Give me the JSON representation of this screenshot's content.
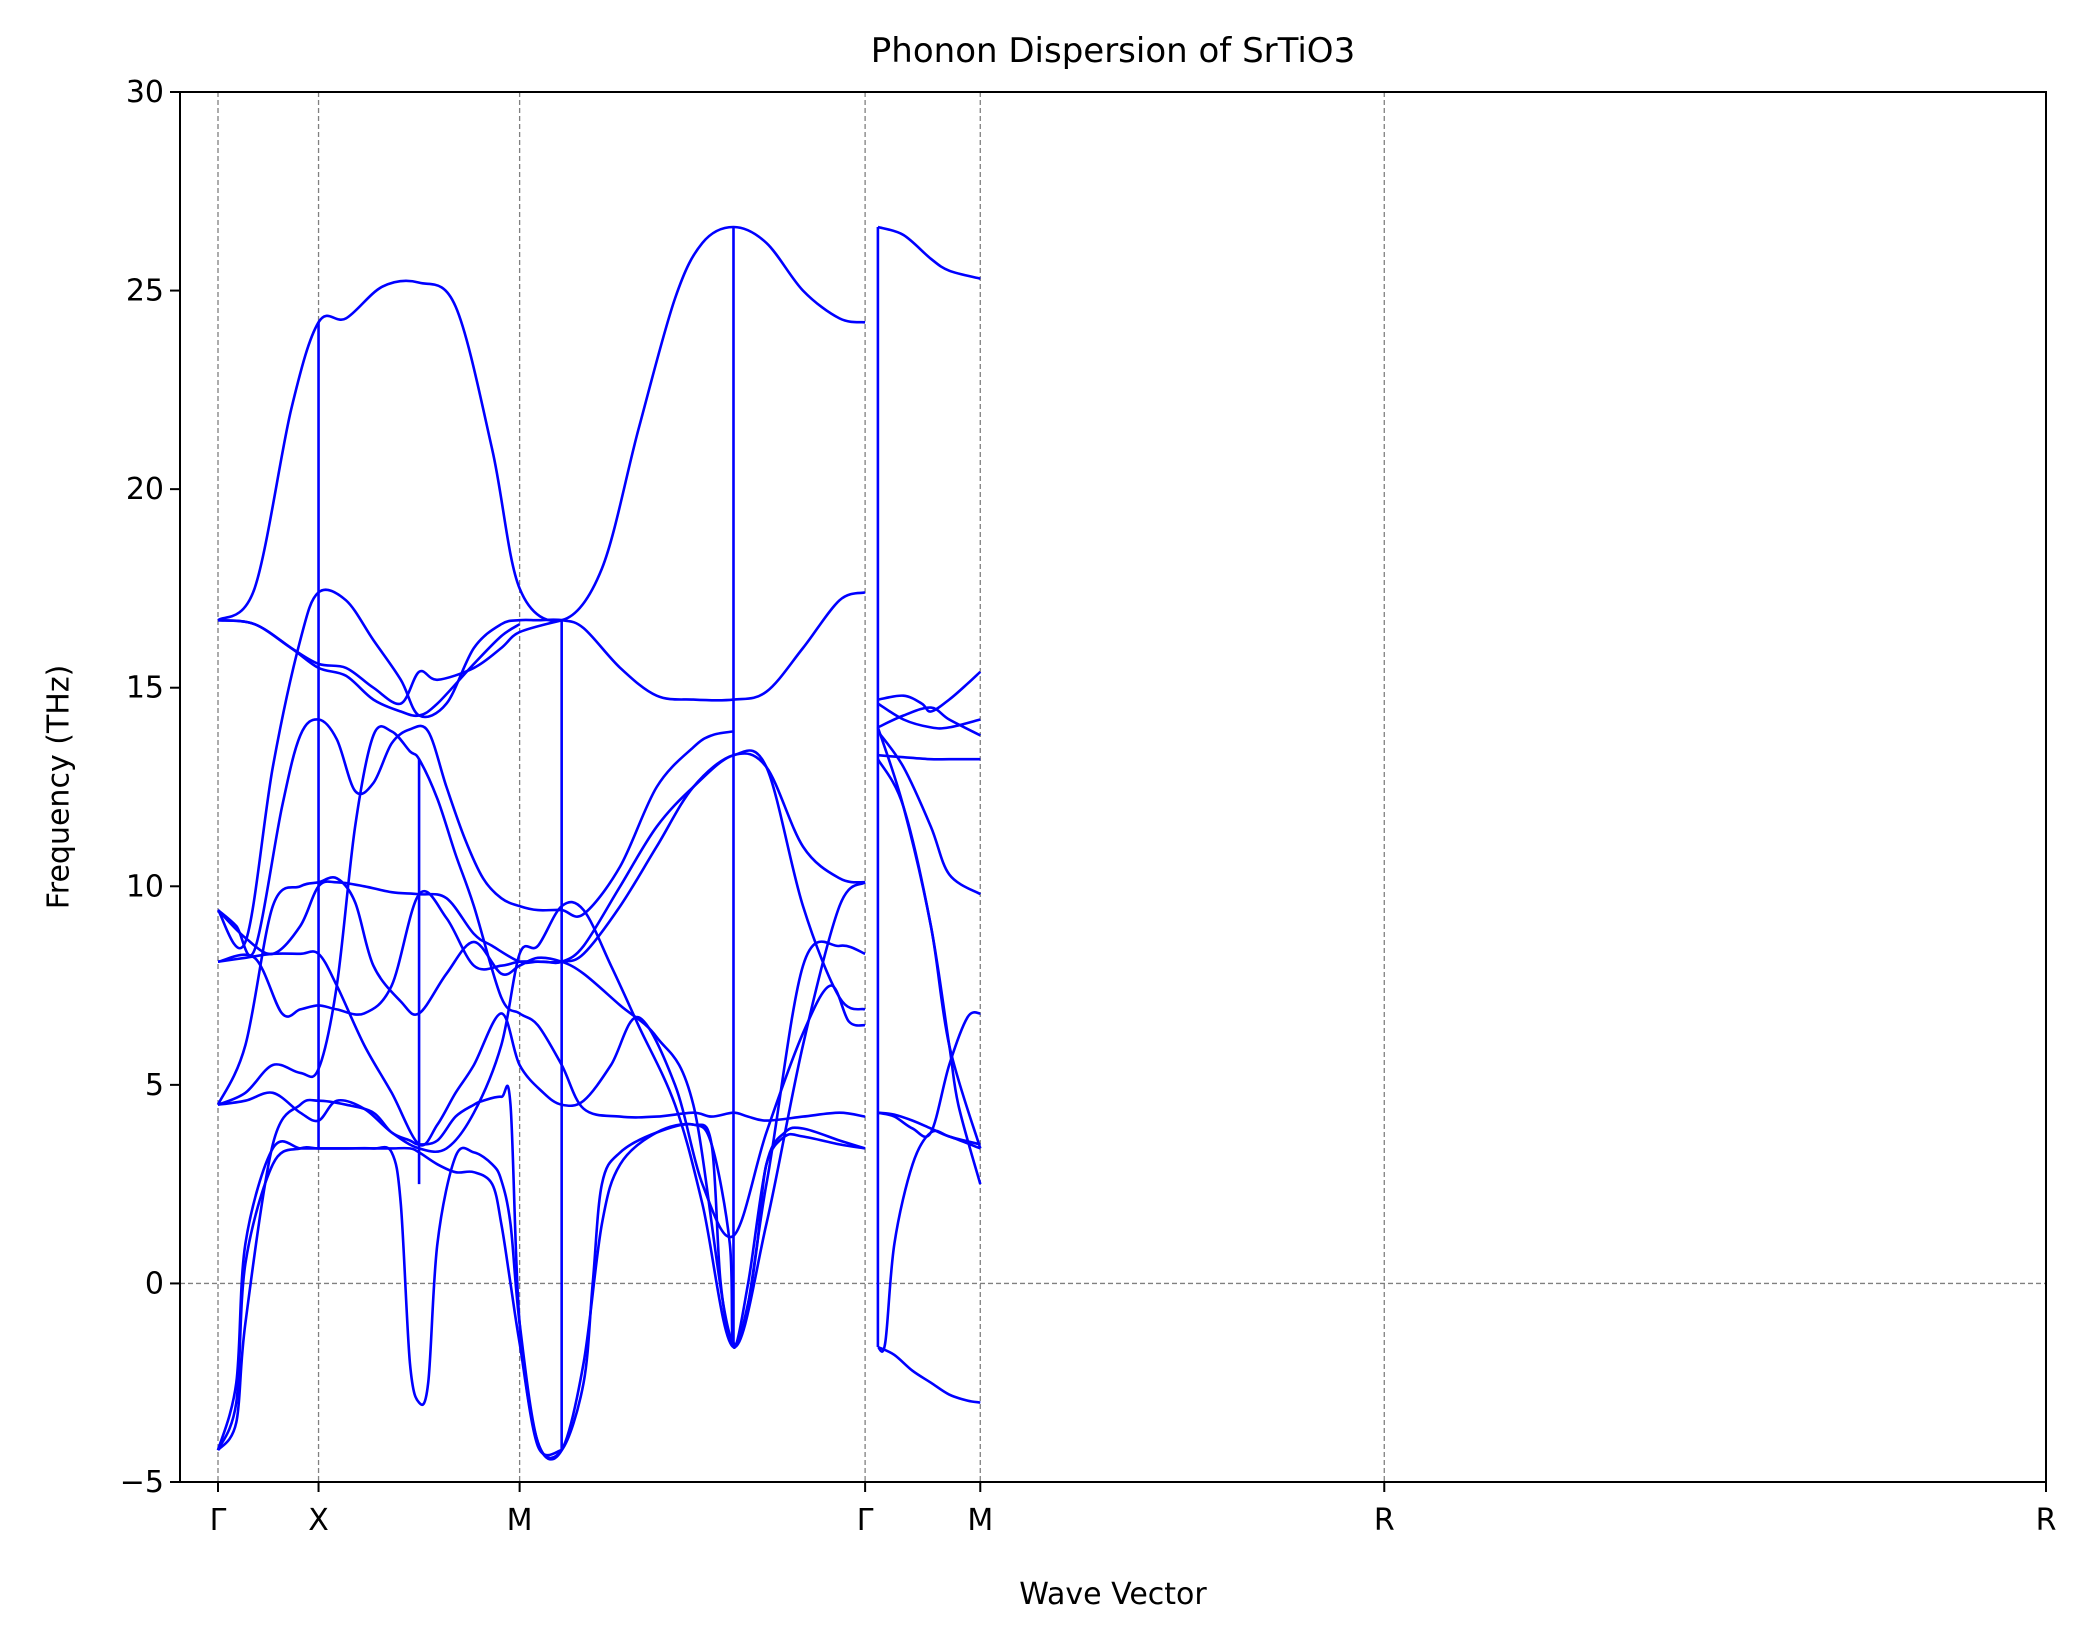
{
  "chart_data": {
    "type": "line",
    "title": "Phonon Dispersion of SrTiO3",
    "xlabel": "Wave Vector",
    "ylabel": "Frequency (THz)",
    "ylim": [
      -5,
      30
    ],
    "yticks": [
      -5,
      0,
      5,
      10,
      15,
      20,
      25,
      30
    ],
    "xlim": [
      0,
      1
    ],
    "high_symmetry_points": [
      {
        "label": "Γ",
        "x": 0.0
      },
      {
        "label": "X",
        "x": 0.055
      },
      {
        "label": "M",
        "x": 0.165
      },
      {
        "label": "Γ",
        "x": 0.354
      },
      {
        "label": "M",
        "x": 0.417
      },
      {
        "label": "R",
        "x": 0.638
      },
      {
        "label": "R",
        "x": 1.0
      }
    ],
    "grid": "dashed vertical lines at high-symmetry points, dashed horizontal line at 0",
    "color": "#0000ff",
    "discontinuities": [
      {
        "x": 0.055,
        "ymin": 3.4,
        "ymax": 24.2
      },
      {
        "x": 0.11,
        "ymin": 2.5,
        "ymax": 13.2
      },
      {
        "x": 0.188,
        "ymin": -4.2,
        "ymax": 16.7
      },
      {
        "x": 0.282,
        "ymin": -1.6,
        "ymax": 26.6
      },
      {
        "x": 0.361,
        "ymin": -1.6,
        "ymax": 26.6
      }
    ],
    "series": [
      {
        "x": [
          0.0,
          0.02,
          0.04,
          0.055,
          0.07,
          0.09,
          0.11,
          0.13,
          0.15,
          0.165,
          0.188,
          0.21,
          0.23,
          0.25,
          0.265,
          0.282,
          0.3,
          0.32,
          0.34,
          0.354
        ],
        "values": [
          16.7,
          17.5,
          22,
          24.2,
          24.3,
          25.1,
          25.2,
          24.6,
          21,
          17.5,
          16.7,
          18,
          21.5,
          24.8,
          26.2,
          26.6,
          26.2,
          25,
          24.3,
          24.2
        ]
      },
      {
        "x": [
          0.361,
          0.375,
          0.39,
          0.4,
          0.417
        ],
        "values": [
          26.6,
          26.4,
          25.8,
          25.5,
          25.3
        ]
      },
      {
        "x": [
          0.0,
          0.015,
          0.03,
          0.045,
          0.055,
          0.07,
          0.085,
          0.1,
          0.11,
          0.125,
          0.14,
          0.155,
          0.165,
          0.175,
          0.188,
          0.2,
          0.22,
          0.24,
          0.26,
          0.282,
          0.3,
          0.32,
          0.34,
          0.354
        ],
        "values": [
          9.4,
          8.6,
          13,
          16.2,
          17.4,
          17.2,
          16.2,
          15.2,
          14.3,
          14.6,
          16.0,
          16.6,
          16.7,
          16.7,
          16.7,
          16.5,
          15.5,
          14.8,
          14.7,
          14.7,
          14.9,
          16.0,
          17.2,
          17.4
        ]
      },
      {
        "x": [
          0.0,
          0.02,
          0.04,
          0.055,
          0.07,
          0.085,
          0.1,
          0.11,
          0.12,
          0.14,
          0.155,
          0.165,
          0.188
        ],
        "values": [
          16.7,
          16.6,
          16.0,
          15.6,
          15.5,
          15.0,
          14.6,
          15.4,
          15.2,
          15.5,
          16.0,
          16.4,
          16.7
        ]
      },
      {
        "x": [
          0.0,
          0.02,
          0.04,
          0.055,
          0.07,
          0.085,
          0.1,
          0.11,
          0.12,
          0.14,
          0.155,
          0.165
        ],
        "values": [
          16.7,
          16.6,
          16.0,
          15.5,
          15.3,
          14.7,
          14.4,
          14.3,
          14.6,
          15.6,
          16.3,
          16.6
        ]
      },
      {
        "x": [
          0.0,
          0.01,
          0.02,
          0.035,
          0.045,
          0.055,
          0.065,
          0.075,
          0.085,
          0.095,
          0.105,
          0.115,
          0.125,
          0.135,
          0.145,
          0.155,
          0.165,
          0.175,
          0.188,
          0.2,
          0.22,
          0.24,
          0.26,
          0.27,
          0.282
        ],
        "values": [
          9.4,
          9.0,
          8.4,
          12.0,
          13.8,
          14.2,
          13.7,
          12.4,
          12.6,
          13.6,
          13.95,
          13.9,
          12.5,
          11.2,
          10.2,
          9.7,
          9.5,
          9.4,
          9.4,
          9.3,
          10.5,
          12.5,
          13.5,
          13.8,
          13.9
        ]
      },
      {
        "x": [
          0.0,
          0.015,
          0.03,
          0.045,
          0.055,
          0.065,
          0.08,
          0.095,
          0.11,
          0.125,
          0.14,
          0.15,
          0.165,
          0.175,
          0.188,
          0.2,
          0.22,
          0.24,
          0.26,
          0.282,
          0.3,
          0.32,
          0.34,
          0.354
        ],
        "values": [
          9.4,
          8.7,
          8.3,
          9.0,
          10.0,
          10.1,
          10.0,
          9.85,
          9.8,
          9.7,
          8.8,
          8.5,
          8.1,
          8.1,
          8.1,
          8.3,
          9.5,
          11.0,
          12.5,
          13.3,
          13.0,
          11.0,
          10.2,
          10.1
        ]
      },
      {
        "x": [
          0.0,
          0.02,
          0.035,
          0.045,
          0.055,
          0.065,
          0.08,
          0.095,
          0.11,
          0.125,
          0.14,
          0.155,
          0.165,
          0.178,
          0.188,
          0.2,
          0.22,
          0.24,
          0.26,
          0.282,
          0.3,
          0.32,
          0.34,
          0.354
        ],
        "values": [
          8.1,
          8.2,
          6.8,
          6.9,
          7.0,
          6.9,
          6.8,
          7.5,
          9.8,
          9.2,
          8.0,
          8.0,
          8.1,
          8.1,
          8.1,
          8.5,
          10,
          11.5,
          12.5,
          13.3,
          13.0,
          9.5,
          7.2,
          6.9
        ]
      },
      {
        "x": [
          0.0,
          0.015,
          0.03,
          0.045,
          0.055,
          0.065,
          0.08,
          0.095,
          0.11,
          0.12,
          0.13,
          0.14,
          0.155,
          0.165,
          0.178,
          0.188,
          0.2,
          0.215,
          0.23,
          0.25,
          0.265,
          0.282,
          0.3,
          0.32,
          0.335,
          0.345,
          0.354
        ],
        "values": [
          8.1,
          8.2,
          8.3,
          8.3,
          8.3,
          7.5,
          6.0,
          4.8,
          3.5,
          4.0,
          4.8,
          5.5,
          6.8,
          5.5,
          4.8,
          4.5,
          4.6,
          5.5,
          6.7,
          5.0,
          2.5,
          1.2,
          3.8,
          6.3,
          7.5,
          6.6,
          6.5
        ]
      },
      {
        "x": [
          0.0,
          0.015,
          0.03,
          0.045,
          0.055,
          0.065,
          0.08,
          0.095,
          0.11,
          0.125,
          0.14,
          0.155,
          0.165,
          0.175,
          0.188,
          0.2,
          0.215,
          0.23,
          0.25,
          0.265,
          0.282,
          0.3,
          0.32,
          0.34,
          0.354
        ],
        "values": [
          4.5,
          4.6,
          4.8,
          4.3,
          4.1,
          4.6,
          4.4,
          3.8,
          3.4,
          3.4,
          4.3,
          6.0,
          8.3,
          8.5,
          9.5,
          9.4,
          8.0,
          6.5,
          4.5,
          2.0,
          -1.6,
          1.5,
          6.0,
          9.5,
          10.1
        ]
      },
      {
        "x": [
          0.0,
          0.015,
          0.03,
          0.045,
          0.055,
          0.065,
          0.075,
          0.085,
          0.1,
          0.11,
          0.125,
          0.14,
          0.155,
          0.165,
          0.175,
          0.188,
          0.2,
          0.22,
          0.24,
          0.26,
          0.282,
          0.3,
          0.32,
          0.34,
          0.354
        ],
        "values": [
          4.5,
          6.0,
          9.5,
          10.0,
          10.1,
          10.2,
          9.6,
          8.0,
          7.1,
          6.8,
          7.8,
          8.6,
          7.8,
          8.0,
          8.2,
          8.1,
          7.8,
          7.0,
          6.2,
          4.5,
          -1.5,
          2.5,
          8.0,
          8.5,
          8.3
        ]
      },
      {
        "x": [
          0.0,
          0.015,
          0.03,
          0.045,
          0.055,
          0.065,
          0.075,
          0.085,
          0.095,
          0.105,
          0.11,
          0.12,
          0.13,
          0.14,
          0.155,
          0.165,
          0.175,
          0.188,
          0.2,
          0.22,
          0.24,
          0.26,
          0.27,
          0.282,
          0.29,
          0.3,
          0.32,
          0.34,
          0.354
        ],
        "values": [
          4.5,
          4.8,
          5.5,
          5.3,
          5.4,
          7.5,
          11.5,
          13.8,
          13.9,
          13.4,
          13.2,
          12.2,
          10.8,
          9.5,
          7.2,
          6.8,
          6.5,
          5.5,
          4.4,
          4.2,
          4.2,
          4.3,
          4.2,
          4.3,
          4.2,
          4.1,
          4.2,
          4.3,
          4.2
        ]
      },
      {
        "x": [
          0.0,
          0.01,
          0.015,
          0.03,
          0.045,
          0.055,
          0.07,
          0.085,
          0.095,
          0.105,
          0.11,
          0.12,
          0.13,
          0.14,
          0.145,
          0.155,
          0.16,
          0.165,
          0.175,
          0.188,
          0.2,
          0.21,
          0.22,
          0.24,
          0.26,
          0.27,
          0.28,
          0.282,
          0.29,
          0.3,
          0.31,
          0.32,
          0.34,
          0.354
        ],
        "values": [
          -4.2,
          -3.5,
          -1.0,
          3.5,
          4.5,
          4.6,
          4.5,
          4.3,
          3.8,
          3.6,
          3.5,
          3.6,
          4.2,
          4.5,
          4.6,
          4.7,
          4.5,
          -1.0,
          -4.0,
          -4.2,
          -2.0,
          1.5,
          3.0,
          3.8,
          4.0,
          3.5,
          1.0,
          -1.6,
          0.0,
          3.0,
          3.8,
          3.9,
          3.6,
          3.4
        ]
      },
      {
        "x": [
          0.0,
          0.01,
          0.015,
          0.03,
          0.045,
          0.055,
          0.07,
          0.085,
          0.095,
          0.1,
          0.105,
          0.11,
          0.115,
          0.12,
          0.13,
          0.14,
          0.15,
          0.155,
          0.16,
          0.165,
          0.175,
          0.188,
          0.2,
          0.205,
          0.21,
          0.22,
          0.24,
          0.26,
          0.27,
          0.275,
          0.282,
          0.29,
          0.295,
          0.3,
          0.31,
          0.32,
          0.34,
          0.354
        ],
        "values": [
          -4.2,
          -2.5,
          1.0,
          3.4,
          3.4,
          3.4,
          3.4,
          3.4,
          3.3,
          2.0,
          -2.0,
          -3.0,
          -2.5,
          1.0,
          3.2,
          3.3,
          3.0,
          2.6,
          1.5,
          -1.0,
          -4.0,
          -4.2,
          -2.5,
          0.0,
          2.5,
          3.3,
          3.8,
          4.0,
          3.5,
          0.0,
          -1.6,
          -0.5,
          1.0,
          3.0,
          3.7,
          3.7,
          3.5,
          3.4
        ]
      },
      {
        "x": [
          0.0,
          0.01,
          0.015,
          0.03,
          0.045,
          0.055,
          0.07,
          0.085,
          0.095,
          0.105,
          0.11,
          0.12,
          0.13,
          0.14,
          0.15,
          0.155,
          0.16,
          0.165,
          0.175,
          0.188
        ],
        "values": [
          -4.2,
          -3.0,
          0.5,
          3.0,
          3.4,
          3.4,
          3.4,
          3.4,
          3.4,
          3.4,
          3.3,
          3.0,
          2.8,
          2.8,
          2.5,
          1.5,
          0.0,
          -1.5,
          -4.1,
          -4.2
        ]
      },
      {
        "x": [
          0.361,
          0.375,
          0.385,
          0.39,
          0.4,
          0.41,
          0.417
        ],
        "values": [
          14.7,
          14.8,
          14.6,
          14.4,
          14.7,
          15.1,
          15.4
        ]
      },
      {
        "x": [
          0.361,
          0.375,
          0.39,
          0.4,
          0.417
        ],
        "values": [
          14.6,
          14.2,
          14.0,
          14.0,
          14.2
        ]
      },
      {
        "x": [
          0.361,
          0.375,
          0.39,
          0.4,
          0.417
        ],
        "values": [
          14.0,
          14.3,
          14.5,
          14.2,
          13.8
        ]
      },
      {
        "x": [
          0.361,
          0.375,
          0.39,
          0.4,
          0.417
        ],
        "values": [
          13.9,
          13.0,
          11.5,
          10.3,
          9.8
        ]
      },
      {
        "x": [
          0.361,
          0.375,
          0.39,
          0.4,
          0.417
        ],
        "values": [
          13.3,
          13.25,
          13.2,
          13.2,
          13.2
        ]
      },
      {
        "x": [
          0.361,
          0.375,
          0.39,
          0.4,
          0.417
        ],
        "values": [
          13.2,
          12.0,
          9.0,
          6.0,
          3.4
        ]
      },
      {
        "x": [
          0.361,
          0.375,
          0.39,
          0.4,
          0.405,
          0.417
        ],
        "values": [
          14.0,
          12.0,
          9.0,
          6.0,
          4.5,
          2.5
        ]
      },
      {
        "x": [
          0.361,
          0.37,
          0.38,
          0.39,
          0.4,
          0.41,
          0.417
        ],
        "values": [
          4.3,
          4.2,
          3.9,
          3.8,
          5.5,
          6.7,
          6.8
        ]
      },
      {
        "x": [
          0.361,
          0.37,
          0.38,
          0.39,
          0.4,
          0.417
        ],
        "values": [
          4.3,
          4.25,
          4.1,
          3.9,
          3.7,
          3.5
        ]
      },
      {
        "x": [
          0.361,
          0.365,
          0.37,
          0.38,
          0.39,
          0.4,
          0.417
        ],
        "values": [
          -1.6,
          -1.5,
          1.0,
          3.0,
          3.8,
          3.7,
          3.4
        ]
      },
      {
        "x": [
          0.361,
          0.37,
          0.38,
          0.39,
          0.4,
          0.41,
          0.417
        ],
        "values": [
          -1.6,
          -1.8,
          -2.2,
          -2.5,
          -2.8,
          -2.95,
          -3.0
        ]
      }
    ]
  }
}
